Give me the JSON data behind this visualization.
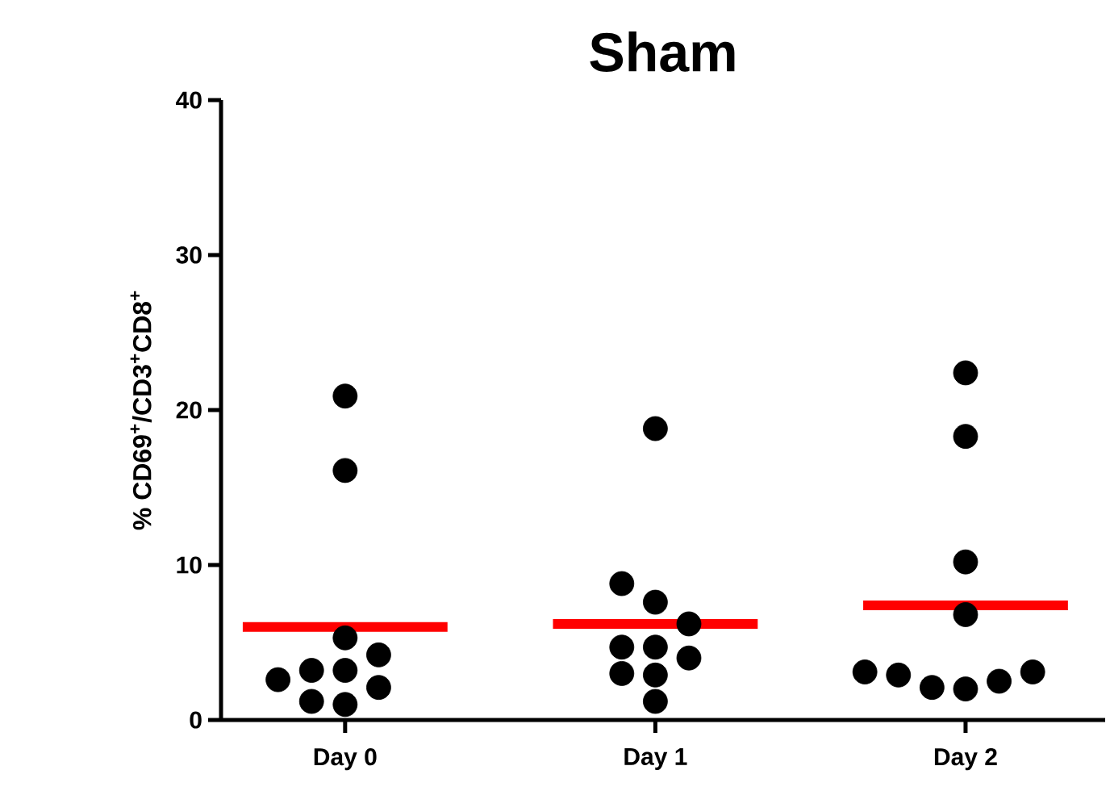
{
  "chart_data": {
    "type": "scatter",
    "title": "Sham",
    "ylabel": "% CD69$^{+}$/CD3$^{+}$CD8$^{+}$",
    "categories": [
      "Day 0",
      "Day 1",
      "Day 2"
    ],
    "ylim": [
      0,
      40
    ],
    "yticks": [
      0,
      10,
      20,
      30,
      40
    ],
    "marker": "circle",
    "series": [
      {
        "color": "#000000",
        "x": [
          "Day 0",
          "Day 0",
          "Day 0",
          "Day 0",
          "Day 0",
          "Day 0",
          "Day 0",
          "Day 0",
          "Day 0",
          "Day 0",
          "Day 1",
          "Day 1",
          "Day 1",
          "Day 1",
          "Day 1",
          "Day 1",
          "Day 1",
          "Day 1",
          "Day 1",
          "Day 1",
          "Day 2",
          "Day 2",
          "Day 2",
          "Day 2",
          "Day 2",
          "Day 2",
          "Day 2",
          "Day 2",
          "Day 2",
          "Day 2"
        ],
        "values": [
          20.9,
          16.1,
          5.3,
          4.2,
          3.2,
          2.1,
          1.0,
          1.2,
          2.6,
          3.2,
          18.8,
          8.8,
          7.6,
          6.2,
          4.7,
          4.0,
          4.7,
          3.0,
          2.9,
          1.2,
          22.4,
          18.3,
          10.2,
          6.8,
          3.1,
          2.5,
          2.0,
          2.1,
          2.9,
          3.1
        ]
      },
      {
        "type": "box",
        "color": "#ff0000",
        "boxes": [
          {
            "low": 6.0,
            "q1": 6.0,
            "median": 6.0,
            "q3": 6.0,
            "high": 6.0
          },
          {
            "low": 6.2,
            "q1": 6.2,
            "median": 6.2,
            "q3": 6.2,
            "high": 6.2
          },
          {
            "low": 7.4,
            "q1": 7.4,
            "median": 7.4,
            "q3": 7.4,
            "high": 7.4
          }
        ]
      }
    ]
  }
}
